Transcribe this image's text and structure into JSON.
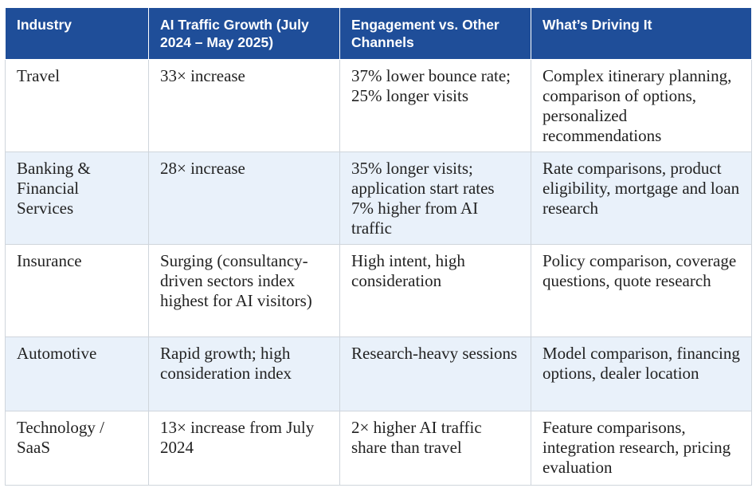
{
  "table": {
    "headers": [
      "Industry",
      "AI Traffic Growth (July 2024 – May 2025)",
      "Engagement vs. Other Channels",
      "What’s Driving It"
    ],
    "rows": [
      {
        "industry": "Travel",
        "growth": "33× increase",
        "engagement": "37% lower bounce rate; 25% longer visits",
        "drivers": "Complex itinerary planning, comparison of options, personalized recommendations"
      },
      {
        "industry": "Banking & Financial Services",
        "growth": "28× increase",
        "engagement": "35% longer visits; application start rates 7% higher from AI traffic",
        "drivers": "Rate comparisons, product eligibility, mortgage and loan research"
      },
      {
        "industry": "Insurance",
        "growth": "Surging (consultancy-driven sectors index highest for AI visitors)",
        "engagement": "High intent, high consideration",
        "drivers": "Policy comparison, coverage questions, quote research"
      },
      {
        "industry": "Automotive",
        "growth": "Rapid growth; high consideration index",
        "engagement": "Research-heavy sessions",
        "drivers": "Model comparison, financing options, dealer location"
      },
      {
        "industry": "Technology / SaaS",
        "growth": "13× increase from July 2024",
        "engagement": "2× higher AI traffic share than travel",
        "drivers": "Feature comparisons, integration research, pricing evaluation"
      }
    ]
  },
  "colors": {
    "header_bg": "#1f4e99",
    "header_text": "#ffffff",
    "stripe_bg": "#e9f1fa",
    "border": "#cfd5dc"
  }
}
